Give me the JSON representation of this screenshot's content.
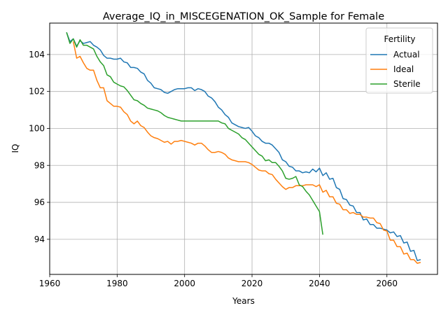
{
  "chart_data": {
    "type": "line",
    "title": "Average_IQ_in_MISCEGENATION_OK_Sample for Female",
    "xlabel": "Years",
    "ylabel": "IQ",
    "xlim": [
      1960,
      2075
    ],
    "ylim": [
      92.1,
      105.7
    ],
    "xticks": [
      1960,
      1980,
      2000,
      2020,
      2040,
      2060
    ],
    "yticks": [
      94,
      96,
      98,
      100,
      102,
      104
    ],
    "grid": true,
    "legend": {
      "title": "Fertility",
      "placement": "top-right"
    },
    "series": [
      {
        "name": "Actual",
        "color": "#1f77b4",
        "x": [
          1965,
          1966,
          1967,
          1968,
          1969,
          1970,
          1971,
          1972,
          1973,
          1974,
          1975,
          1976,
          1977,
          1978,
          1979,
          1980,
          1981,
          1982,
          1983,
          1984,
          1985,
          1986,
          1987,
          1988,
          1989,
          1990,
          1991,
          1992,
          1993,
          1994,
          1995,
          1996,
          1997,
          1998,
          1999,
          2000,
          2001,
          2002,
          2003,
          2004,
          2005,
          2006,
          2007,
          2008,
          2009,
          2010,
          2011,
          2012,
          2013,
          2014,
          2015,
          2016,
          2017,
          2018,
          2019,
          2020,
          2021,
          2022,
          2023,
          2024,
          2025,
          2026,
          2027,
          2028,
          2029,
          2030,
          2031,
          2032,
          2033,
          2034,
          2035,
          2036,
          2037,
          2038,
          2039,
          2040,
          2041,
          2042,
          2043,
          2044,
          2045,
          2046,
          2047,
          2048,
          2049,
          2050,
          2051,
          2052,
          2053,
          2054,
          2055,
          2056,
          2057,
          2058,
          2059,
          2060,
          2061,
          2062,
          2063,
          2064,
          2065,
          2066,
          2067,
          2068,
          2069,
          2070
        ],
        "values": [
          105.2,
          104.7,
          104.85,
          104.45,
          104.75,
          104.6,
          104.65,
          104.7,
          104.5,
          104.4,
          104.25,
          103.95,
          103.8,
          103.8,
          103.75,
          103.75,
          103.8,
          103.6,
          103.55,
          103.3,
          103.3,
          103.25,
          103.05,
          102.95,
          102.6,
          102.45,
          102.2,
          102.15,
          102.1,
          101.95,
          101.9,
          102.0,
          102.1,
          102.15,
          102.15,
          102.15,
          102.2,
          102.2,
          102.05,
          102.15,
          102.1,
          102.0,
          101.75,
          101.65,
          101.45,
          101.15,
          101.0,
          100.75,
          100.6,
          100.3,
          100.2,
          100.1,
          100.05,
          100.0,
          100.05,
          99.85,
          99.6,
          99.5,
          99.3,
          99.2,
          99.2,
          99.1,
          98.9,
          98.7,
          98.3,
          98.2,
          97.95,
          97.9,
          97.7,
          97.7,
          97.6,
          97.65,
          97.6,
          97.8,
          97.65,
          97.85,
          97.45,
          97.6,
          97.25,
          97.3,
          96.8,
          96.7,
          96.2,
          96.15,
          95.85,
          95.8,
          95.45,
          95.45,
          95.05,
          95.1,
          94.8,
          94.8,
          94.6,
          94.6,
          94.55,
          94.5,
          94.35,
          94.4,
          94.15,
          94.2,
          93.8,
          93.85,
          93.35,
          93.4,
          92.85,
          92.9
        ]
      },
      {
        "name": "Ideal",
        "color": "#ff7f0e",
        "x": [
          1967,
          1968,
          1969,
          1970,
          1971,
          1972,
          1973,
          1974,
          1975,
          1976,
          1977,
          1978,
          1979,
          1980,
          1981,
          1982,
          1983,
          1984,
          1985,
          1986,
          1987,
          1988,
          1989,
          1990,
          1991,
          1992,
          1993,
          1994,
          1995,
          1996,
          1997,
          1998,
          1999,
          2000,
          2001,
          2002,
          2003,
          2004,
          2005,
          2006,
          2007,
          2008,
          2009,
          2010,
          2011,
          2012,
          2013,
          2014,
          2015,
          2016,
          2017,
          2018,
          2019,
          2020,
          2021,
          2022,
          2023,
          2024,
          2025,
          2026,
          2027,
          2028,
          2029,
          2030,
          2031,
          2032,
          2033,
          2034,
          2035,
          2036,
          2037,
          2038,
          2039,
          2040,
          2041,
          2042,
          2043,
          2044,
          2045,
          2046,
          2047,
          2048,
          2049,
          2050,
          2051,
          2052,
          2053,
          2054,
          2055,
          2056,
          2057,
          2058,
          2059,
          2060,
          2061,
          2062,
          2063,
          2064,
          2065,
          2066,
          2067,
          2068,
          2069,
          2070
        ],
        "values": [
          104.7,
          103.8,
          103.9,
          103.55,
          103.25,
          103.15,
          103.15,
          102.6,
          102.2,
          102.2,
          101.5,
          101.35,
          101.2,
          101.2,
          101.15,
          100.9,
          100.75,
          100.4,
          100.25,
          100.4,
          100.15,
          100.05,
          99.8,
          99.6,
          99.5,
          99.45,
          99.35,
          99.25,
          99.3,
          99.15,
          99.3,
          99.3,
          99.35,
          99.3,
          99.25,
          99.2,
          99.1,
          99.2,
          99.2,
          99.05,
          98.85,
          98.7,
          98.7,
          98.75,
          98.7,
          98.6,
          98.4,
          98.3,
          98.25,
          98.2,
          98.2,
          98.2,
          98.15,
          98.05,
          97.9,
          97.75,
          97.7,
          97.7,
          97.55,
          97.5,
          97.25,
          97.05,
          96.85,
          96.7,
          96.8,
          96.8,
          96.9,
          96.9,
          96.9,
          96.95,
          96.95,
          96.95,
          96.85,
          96.95,
          96.55,
          96.65,
          96.3,
          96.3,
          95.95,
          95.9,
          95.6,
          95.6,
          95.4,
          95.45,
          95.35,
          95.35,
          95.2,
          95.2,
          95.15,
          95.15,
          94.9,
          94.85,
          94.5,
          94.45,
          93.95,
          93.95,
          93.6,
          93.6,
          93.2,
          93.25,
          92.9,
          92.9,
          92.7,
          92.75
        ]
      },
      {
        "name": "Sterile",
        "color": "#2ca02c",
        "x": [
          1965,
          1966,
          1967,
          1968,
          1969,
          1970,
          1971,
          1972,
          1973,
          1974,
          1975,
          1976,
          1977,
          1978,
          1979,
          1980,
          1981,
          1982,
          1983,
          1984,
          1985,
          1986,
          1987,
          1988,
          1989,
          1990,
          1991,
          1992,
          1993,
          1994,
          1995,
          1996,
          1997,
          1998,
          1999,
          2000,
          2001,
          2002,
          2003,
          2004,
          2005,
          2006,
          2007,
          2008,
          2009,
          2010,
          2011,
          2012,
          2013,
          2014,
          2015,
          2016,
          2017,
          2018,
          2019,
          2020,
          2021,
          2022,
          2023,
          2024,
          2025,
          2026,
          2027,
          2028,
          2029,
          2030,
          2031,
          2032,
          2033,
          2034,
          2035,
          2036,
          2037,
          2038,
          2039,
          2040,
          2041
        ],
        "values": [
          105.2,
          104.6,
          104.85,
          104.4,
          104.8,
          104.5,
          104.5,
          104.4,
          104.3,
          103.9,
          103.6,
          103.4,
          102.9,
          102.8,
          102.5,
          102.4,
          102.3,
          102.25,
          102.05,
          101.8,
          101.55,
          101.5,
          101.35,
          101.25,
          101.1,
          101.05,
          101.0,
          100.95,
          100.85,
          100.7,
          100.6,
          100.55,
          100.5,
          100.45,
          100.4,
          100.4,
          100.4,
          100.4,
          100.4,
          100.4,
          100.4,
          100.4,
          100.4,
          100.4,
          100.4,
          100.4,
          100.3,
          100.25,
          100.0,
          99.9,
          99.8,
          99.7,
          99.5,
          99.4,
          99.2,
          99.0,
          98.8,
          98.6,
          98.5,
          98.25,
          98.3,
          98.15,
          98.15,
          97.95,
          97.7,
          97.3,
          97.25,
          97.3,
          97.4,
          96.95,
          96.85,
          96.6,
          96.4,
          96.1,
          95.8,
          95.5,
          94.25
        ]
      }
    ]
  }
}
